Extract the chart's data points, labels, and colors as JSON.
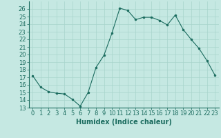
{
  "x": [
    0,
    1,
    2,
    3,
    4,
    5,
    6,
    7,
    8,
    9,
    10,
    11,
    12,
    13,
    14,
    15,
    16,
    17,
    18,
    19,
    20,
    21,
    22,
    23
  ],
  "y": [
    17.2,
    15.7,
    15.1,
    14.9,
    14.8,
    14.1,
    13.2,
    15.0,
    18.3,
    19.9,
    22.8,
    26.1,
    25.8,
    24.6,
    24.9,
    24.9,
    24.5,
    23.9,
    25.2,
    23.3,
    22.0,
    20.8,
    19.2,
    17.3
  ],
  "line_color": "#1a6b5e",
  "marker": "o",
  "marker_size": 2,
  "background_color": "#c5e8e2",
  "grid_color": "#a8d4cc",
  "xlabel": "Humidex (Indice chaleur)",
  "ylim": [
    13,
    27
  ],
  "xlim": [
    -0.5,
    23.5
  ],
  "yticks": [
    13,
    14,
    15,
    16,
    17,
    18,
    19,
    20,
    21,
    22,
    23,
    24,
    25,
    26
  ],
  "xticks": [
    0,
    1,
    2,
    3,
    4,
    5,
    6,
    7,
    8,
    9,
    10,
    11,
    12,
    13,
    14,
    15,
    16,
    17,
    18,
    19,
    20,
    21,
    22,
    23
  ],
  "xtick_labels": [
    "0",
    "1",
    "2",
    "3",
    "4",
    "5",
    "6",
    "7",
    "8",
    "9",
    "10",
    "11",
    "12",
    "13",
    "14",
    "15",
    "16",
    "17",
    "18",
    "19",
    "20",
    "21",
    "22",
    "23"
  ],
  "tick_fontsize": 6,
  "xlabel_fontsize": 7
}
